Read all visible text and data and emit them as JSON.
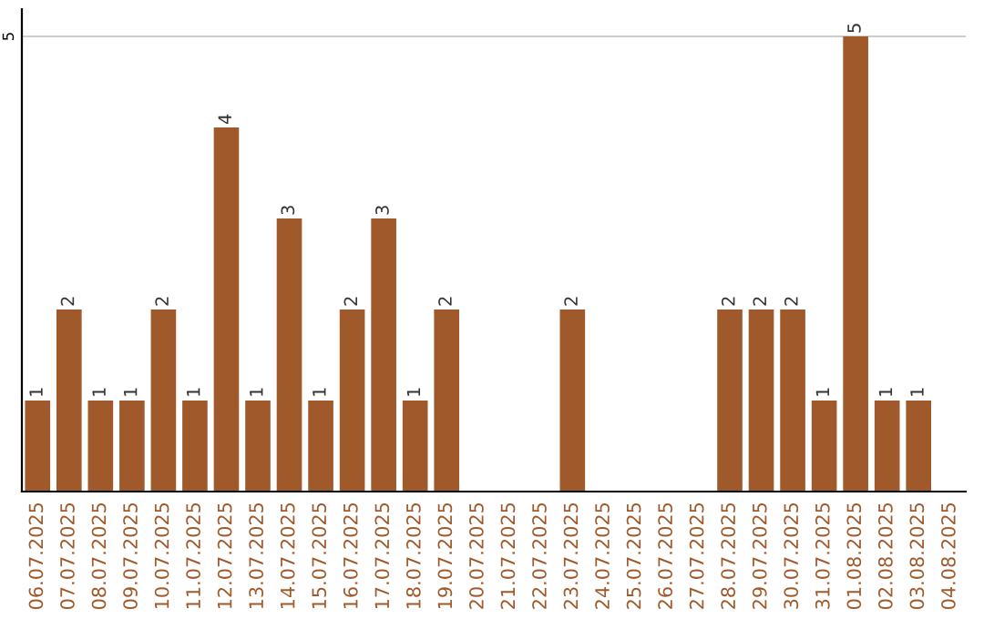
{
  "chart_data": {
    "type": "bar",
    "categories": [
      "06.07.2025",
      "07.07.2025",
      "08.07.2025",
      "09.07.2025",
      "10.07.2025",
      "11.07.2025",
      "12.07.2025",
      "13.07.2025",
      "14.07.2025",
      "15.07.2025",
      "16.07.2025",
      "17.07.2025",
      "18.07.2025",
      "19.07.2025",
      "20.07.2025",
      "21.07.2025",
      "22.07.2025",
      "23.07.2025",
      "24.07.2025",
      "25.07.2025",
      "26.07.2025",
      "27.07.2025",
      "28.07.2025",
      "29.07.2025",
      "30.07.2025",
      "31.07.2025",
      "01.08.2025",
      "02.08.2025",
      "03.08.2025",
      "04.08.2025"
    ],
    "values": [
      1,
      2,
      1,
      1,
      2,
      1,
      4,
      1,
      3,
      1,
      2,
      3,
      1,
      2,
      null,
      null,
      null,
      2,
      null,
      null,
      null,
      null,
      2,
      2,
      2,
      1,
      5,
      1,
      1,
      null
    ],
    "color": "#a0592a",
    "ylim": [
      0,
      5.3
    ],
    "yticks": [
      5
    ],
    "grid": "y",
    "data_labels": true
  }
}
